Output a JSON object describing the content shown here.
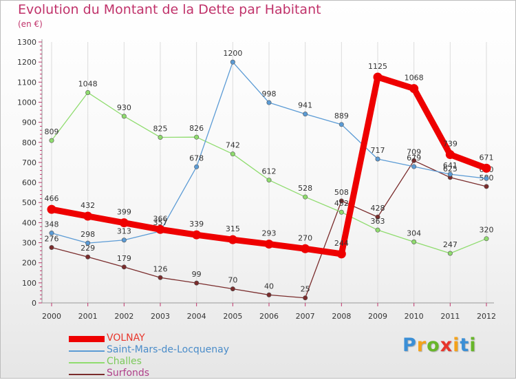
{
  "title": "Evolution du Montant de la Dette par Habitant",
  "subtitle": "(en €)",
  "logo": {
    "letters": [
      "P",
      "r",
      "o",
      "x",
      "i",
      "t",
      "i"
    ],
    "colors": [
      "#3b8fd6",
      "#f4a21b",
      "#68b62a",
      "#e8352b",
      "#f4a21b",
      "#3b8fd6",
      "#68b62a"
    ]
  },
  "chart_data": {
    "type": "line",
    "title": "Evolution du Montant de la Dette par Habitant",
    "subtitle": "(en €)",
    "x": [
      "2000",
      "2001",
      "2002",
      "2003",
      "2004",
      "2005",
      "2006",
      "2007",
      "2008",
      "2009",
      "2010",
      "2011",
      "2012"
    ],
    "yticks": [
      "0",
      "100",
      "200",
      "300",
      "400",
      "500",
      "600",
      "700",
      "800",
      "900",
      "1000",
      "1100",
      "1200",
      "1300"
    ],
    "ylim": [
      0,
      1300
    ],
    "grid": "vertical",
    "legend_position": "bottom-left",
    "series": [
      {
        "name": "VOLNAY",
        "color": "#ee0000",
        "values": [
          466,
          432,
          399,
          366,
          339,
          315,
          293,
          270,
          244,
          1125,
          1068,
          739,
          671
        ]
      },
      {
        "name": "Saint-Mars-de-Locquenay",
        "color": "#5b9bd5",
        "values": [
          348,
          298,
          313,
          357,
          678,
          1200,
          998,
          941,
          889,
          717,
          679,
          641,
          620
        ]
      },
      {
        "name": "Challes",
        "color": "#8fdc6e",
        "values": [
          809,
          1048,
          930,
          825,
          826,
          742,
          612,
          528,
          452,
          363,
          304,
          247,
          320
        ]
      },
      {
        "name": "Surfonds",
        "color": "#7a2c2c",
        "values": [
          276,
          229,
          179,
          126,
          99,
          70,
          40,
          25,
          508,
          428,
          709,
          625,
          580
        ]
      }
    ]
  }
}
